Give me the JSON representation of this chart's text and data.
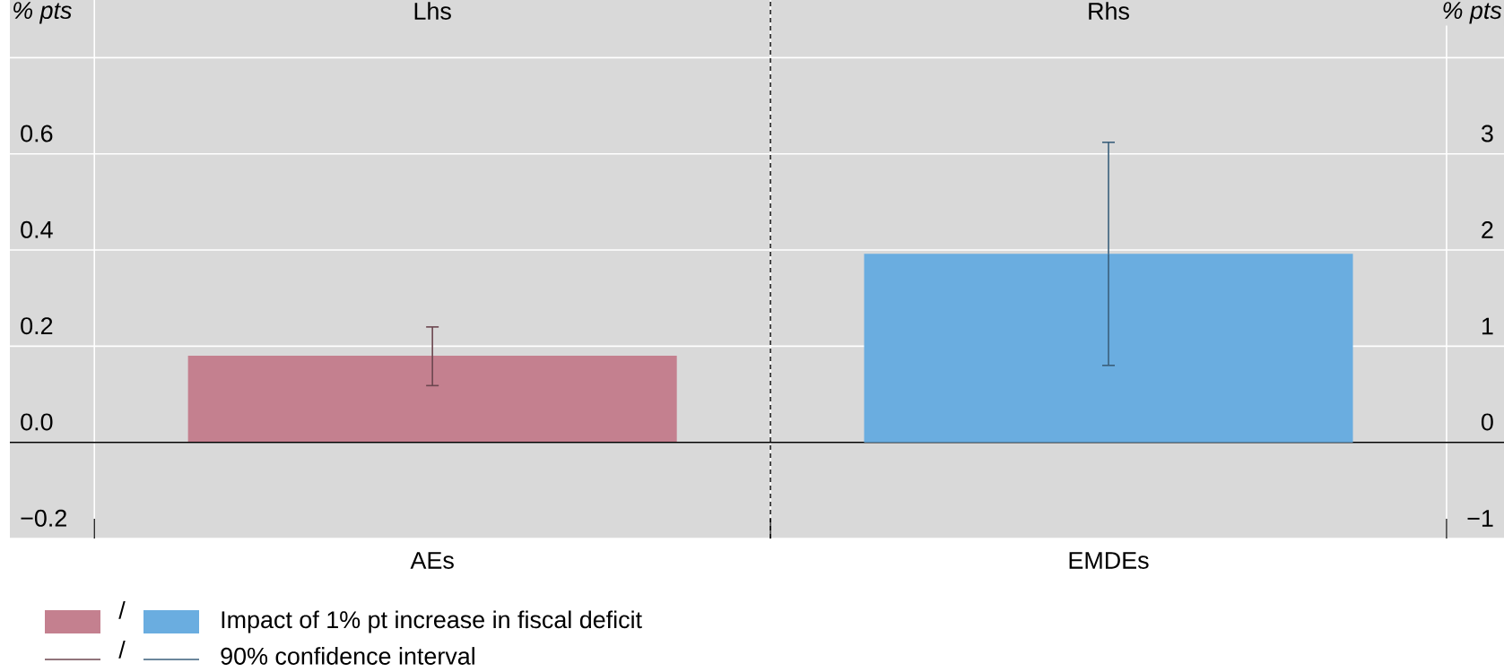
{
  "chart_data": {
    "type": "bar",
    "categories": [
      "AEs",
      "EMDEs"
    ],
    "series": [
      {
        "name": "Impact of 1% pt increase in fiscal deficit",
        "color": "#c4808f",
        "values": [
          0.18,
          null
        ],
        "errors": [
          [
            0.118,
            0.24
          ],
          null
        ]
      },
      {
        "color": "#6aade0",
        "values": [
          null,
          1.96
        ],
        "axis": "y2",
        "errors": [
          null,
          [
            0.8,
            3.12
          ]
        ]
      }
    ],
    "ylabel": "% pts",
    "y2label": "% pts",
    "ylim": [
      -0.2,
      0.92
    ],
    "yticks": [
      {
        "value": -0.2,
        "label": "−0.2"
      },
      {
        "value": 0,
        "label": "0.0"
      },
      0.2,
      0.4,
      0.6,
      {
        "value": 0.8,
        "label": null
      }
    ],
    "y2lim": [
      -1,
      4.6
    ],
    "y2ticks": [
      {
        "value": -1,
        "label": "−1"
      },
      0,
      1,
      2,
      3,
      {
        "value": 4,
        "label": null
      }
    ],
    "annotations": [
      "Lhs",
      "Rhs",
      "/",
      "/",
      "90% confidence interval"
    ],
    "grid": "y",
    "legend": "bottom left"
  }
}
